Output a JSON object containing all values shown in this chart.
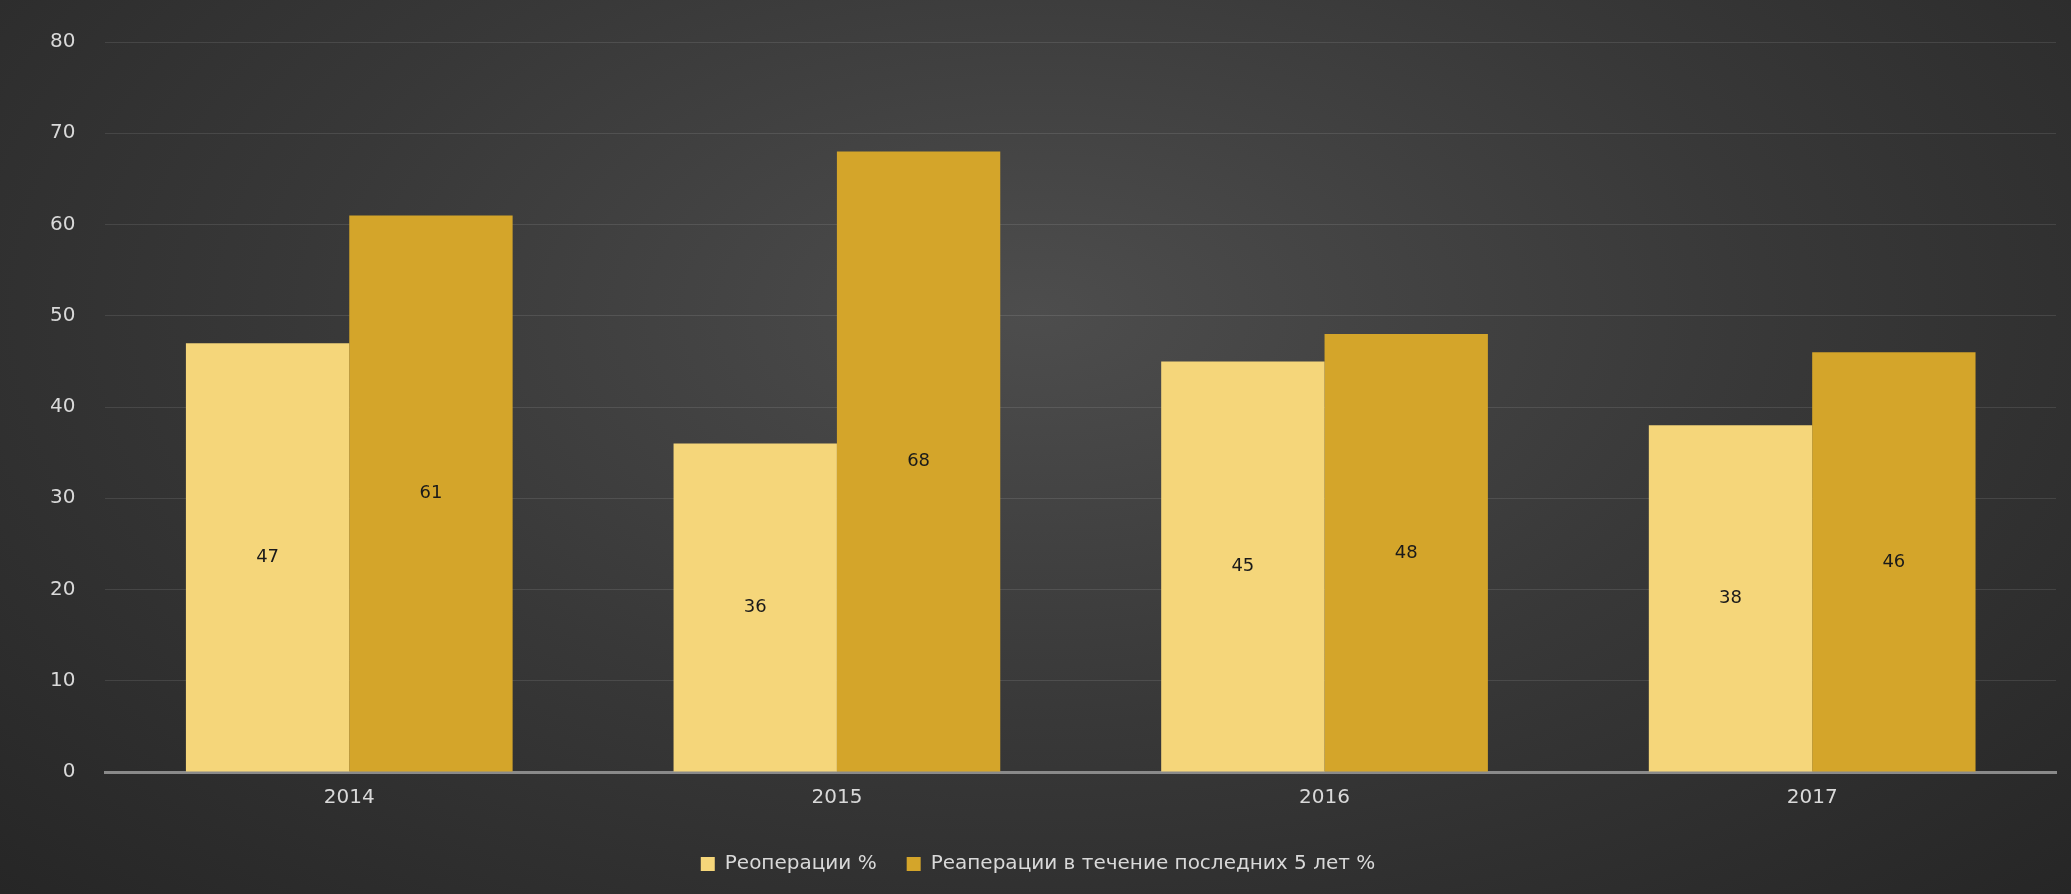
{
  "chart_data": {
    "type": "bar",
    "categories": [
      "2014",
      "2015",
      "2016",
      "2017"
    ],
    "series": [
      {
        "name": "Реоперации %",
        "color": "#f5d67a",
        "values": [
          47,
          36,
          45,
          38
        ]
      },
      {
        "name": "Реаперации в течение последних 5 лет %",
        "color": "#d4a52a",
        "values": [
          61,
          68,
          48,
          46
        ]
      }
    ],
    "ylim": [
      0,
      80
    ],
    "yticks": [
      0,
      10,
      20,
      30,
      40,
      50,
      60,
      70,
      80
    ],
    "grid": "y",
    "legend": "bottom",
    "data_labels": true
  }
}
